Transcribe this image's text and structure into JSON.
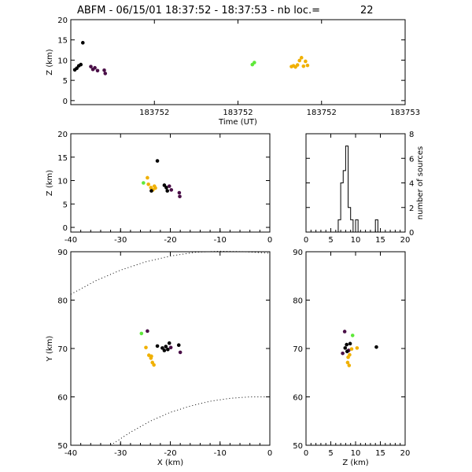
{
  "title": {
    "text": "ABFM - 06/15/01 18:37:52 - 18:37:53 - nb loc.=",
    "count": "22"
  },
  "colors": {
    "purple": "#4a0f47",
    "black": "#000000",
    "green": "#5ee83a",
    "orange": "#f0b000"
  },
  "chart_data": [
    {
      "id": "time-height",
      "type": "scatter",
      "xlabel": "Time (UT)",
      "ylabel": "Z (km)",
      "xlim": [
        0,
        1
      ],
      "ylim": [
        -1,
        20
      ],
      "x_tick_labels": [
        "183752",
        "183752",
        "183752",
        "183752",
        "183753"
      ],
      "y_ticks": [
        0,
        5,
        10,
        15,
        20
      ],
      "points": [
        {
          "x": 0.012,
          "z": 7.6,
          "c": "black"
        },
        {
          "x": 0.018,
          "z": 8.0,
          "c": "black"
        },
        {
          "x": 0.024,
          "z": 8.6,
          "c": "black"
        },
        {
          "x": 0.03,
          "z": 8.9,
          "c": "black"
        },
        {
          "x": 0.036,
          "z": 14.3,
          "c": "black"
        },
        {
          "x": 0.06,
          "z": 8.4,
          "c": "purple"
        },
        {
          "x": 0.066,
          "z": 7.7,
          "c": "purple"
        },
        {
          "x": 0.072,
          "z": 8.1,
          "c": "purple"
        },
        {
          "x": 0.08,
          "z": 7.4,
          "c": "purple"
        },
        {
          "x": 0.1,
          "z": 7.5,
          "c": "purple"
        },
        {
          "x": 0.103,
          "z": 6.7,
          "c": "purple"
        },
        {
          "x": 0.543,
          "z": 8.9,
          "c": "green"
        },
        {
          "x": 0.549,
          "z": 9.4,
          "c": "green"
        },
        {
          "x": 0.66,
          "z": 8.4,
          "c": "orange"
        },
        {
          "x": 0.666,
          "z": 8.6,
          "c": "orange"
        },
        {
          "x": 0.672,
          "z": 8.3,
          "c": "orange"
        },
        {
          "x": 0.678,
          "z": 8.8,
          "c": "orange"
        },
        {
          "x": 0.684,
          "z": 9.9,
          "c": "orange"
        },
        {
          "x": 0.69,
          "z": 10.6,
          "c": "orange"
        },
        {
          "x": 0.696,
          "z": 8.5,
          "c": "orange"
        },
        {
          "x": 0.702,
          "z": 9.7,
          "c": "orange"
        },
        {
          "x": 0.708,
          "z": 8.7,
          "c": "orange"
        }
      ]
    },
    {
      "id": "x-z",
      "type": "scatter",
      "xlabel": "",
      "ylabel": "Z (km)",
      "xlim": [
        -40,
        0
      ],
      "ylim": [
        -1,
        20
      ],
      "x_ticks": [
        -40,
        -30,
        -20,
        -10,
        0
      ],
      "y_ticks": [
        0,
        5,
        10,
        15,
        20
      ],
      "points": [
        {
          "x": -25.4,
          "z": 9.5,
          "c": "green"
        },
        {
          "x": -24.6,
          "z": 10.6,
          "c": "orange"
        },
        {
          "x": -24.4,
          "z": 9.2,
          "c": "orange"
        },
        {
          "x": -23.9,
          "z": 8.5,
          "c": "orange"
        },
        {
          "x": -23.5,
          "z": 8.0,
          "c": "orange"
        },
        {
          "x": -23.2,
          "z": 8.8,
          "c": "orange"
        },
        {
          "x": -23.0,
          "z": 8.4,
          "c": "orange"
        },
        {
          "x": -23.8,
          "z": 7.8,
          "c": "black"
        },
        {
          "x": -22.6,
          "z": 14.2,
          "c": "black"
        },
        {
          "x": -21.2,
          "z": 9.0,
          "c": "black"
        },
        {
          "x": -20.8,
          "z": 8.5,
          "c": "black"
        },
        {
          "x": -20.6,
          "z": 7.8,
          "c": "black"
        },
        {
          "x": -20.2,
          "z": 8.8,
          "c": "purple"
        },
        {
          "x": -19.8,
          "z": 8.0,
          "c": "purple"
        },
        {
          "x": -18.2,
          "z": 7.4,
          "c": "purple"
        },
        {
          "x": -18.1,
          "z": 6.6,
          "c": "purple"
        }
      ]
    },
    {
      "id": "z-histogram",
      "type": "bar",
      "xlabel": "",
      "ylabel": "number of sources",
      "xlim": [
        0,
        20
      ],
      "ylim": [
        0,
        8
      ],
      "x_ticks": [
        0,
        5,
        10,
        15,
        20
      ],
      "y_ticks": [
        0,
        2,
        4,
        6,
        8
      ],
      "bin_edges": [
        0,
        0.5,
        1,
        1.5,
        2,
        2.5,
        3,
        3.5,
        4,
        4.5,
        5,
        5.5,
        6,
        6.5,
        7,
        7.5,
        8,
        8.5,
        9,
        9.5,
        10,
        10.5,
        11,
        11.5,
        12,
        12.5,
        13,
        13.5,
        14,
        14.5,
        15,
        15.5,
        16,
        16.5,
        17,
        17.5,
        18,
        18.5,
        19,
        19.5,
        20
      ],
      "counts": [
        0,
        0,
        0,
        0,
        0,
        0,
        0,
        0,
        0,
        0,
        0,
        0,
        0,
        1,
        4,
        5,
        7,
        2,
        1,
        0,
        1,
        0,
        0,
        0,
        0,
        0,
        0,
        0,
        1,
        0,
        0,
        0,
        0,
        0,
        0,
        0,
        0,
        0,
        0,
        0
      ]
    },
    {
      "id": "x-y",
      "type": "scatter",
      "xlabel": "X (km)",
      "ylabel": "Y (km)",
      "xlim": [
        -40,
        0
      ],
      "ylim": [
        50,
        90
      ],
      "x_ticks": [
        -40,
        -30,
        -20,
        -10,
        0
      ],
      "y_ticks": [
        50,
        60,
        70,
        80,
        90
      ],
      "points": [
        {
          "x": -25.8,
          "y": 73.1,
          "c": "green"
        },
        {
          "x": -24.6,
          "y": 73.6,
          "c": "purple"
        },
        {
          "x": -24.9,
          "y": 70.2,
          "c": "orange"
        },
        {
          "x": -24.3,
          "y": 68.6,
          "c": "orange"
        },
        {
          "x": -23.9,
          "y": 68.0,
          "c": "orange"
        },
        {
          "x": -23.6,
          "y": 67.1,
          "c": "orange"
        },
        {
          "x": -23.3,
          "y": 66.6,
          "c": "orange"
        },
        {
          "x": -23.8,
          "y": 68.4,
          "c": "orange"
        },
        {
          "x": -22.6,
          "y": 70.5,
          "c": "black"
        },
        {
          "x": -21.6,
          "y": 70.1,
          "c": "black"
        },
        {
          "x": -21.2,
          "y": 69.6,
          "c": "black"
        },
        {
          "x": -20.9,
          "y": 70.4,
          "c": "black"
        },
        {
          "x": -20.5,
          "y": 69.8,
          "c": "black"
        },
        {
          "x": -20.2,
          "y": 71.1,
          "c": "black"
        },
        {
          "x": -19.9,
          "y": 70.2,
          "c": "purple"
        },
        {
          "x": -18.3,
          "y": 70.7,
          "c": "black"
        },
        {
          "x": -18.0,
          "y": 69.2,
          "c": "purple"
        }
      ],
      "curves": [
        {
          "x": [
            -40,
            -35,
            -30,
            -25,
            -20,
            -15,
            -10,
            -5,
            0
          ],
          "y": [
            81.2,
            84.0,
            86.2,
            87.9,
            89.1,
            89.9,
            90.1,
            90.0,
            89.7
          ]
        },
        {
          "x": [
            -32,
            -28,
            -24,
            -20,
            -16,
            -12,
            -8,
            -4,
            0
          ],
          "y": [
            50.0,
            52.7,
            55.0,
            56.8,
            58.1,
            59.1,
            59.7,
            60.0,
            60.0
          ]
        }
      ]
    },
    {
      "id": "z-y",
      "type": "scatter",
      "xlabel": "Z (km)",
      "ylabel": "",
      "xlim": [
        0,
        20
      ],
      "ylim": [
        50,
        90
      ],
      "x_ticks": [
        0,
        5,
        10,
        15,
        20
      ],
      "y_ticks": [
        50,
        60,
        70,
        80,
        90
      ],
      "points": [
        {
          "x": 7.8,
          "y": 73.5,
          "c": "purple"
        },
        {
          "x": 9.4,
          "y": 72.7,
          "c": "green"
        },
        {
          "x": 7.4,
          "y": 69.0,
          "c": "purple"
        },
        {
          "x": 7.9,
          "y": 70.1,
          "c": "black"
        },
        {
          "x": 8.2,
          "y": 70.8,
          "c": "black"
        },
        {
          "x": 8.6,
          "y": 69.6,
          "c": "purple"
        },
        {
          "x": 8.9,
          "y": 71.0,
          "c": "black"
        },
        {
          "x": 8.3,
          "y": 69.4,
          "c": "black"
        },
        {
          "x": 9.2,
          "y": 69.9,
          "c": "orange"
        },
        {
          "x": 10.3,
          "y": 70.1,
          "c": "orange"
        },
        {
          "x": 8.5,
          "y": 68.2,
          "c": "orange"
        },
        {
          "x": 8.8,
          "y": 68.7,
          "c": "orange"
        },
        {
          "x": 8.4,
          "y": 67.1,
          "c": "orange"
        },
        {
          "x": 8.7,
          "y": 66.5,
          "c": "orange"
        },
        {
          "x": 14.2,
          "y": 70.3,
          "c": "black"
        }
      ]
    }
  ]
}
